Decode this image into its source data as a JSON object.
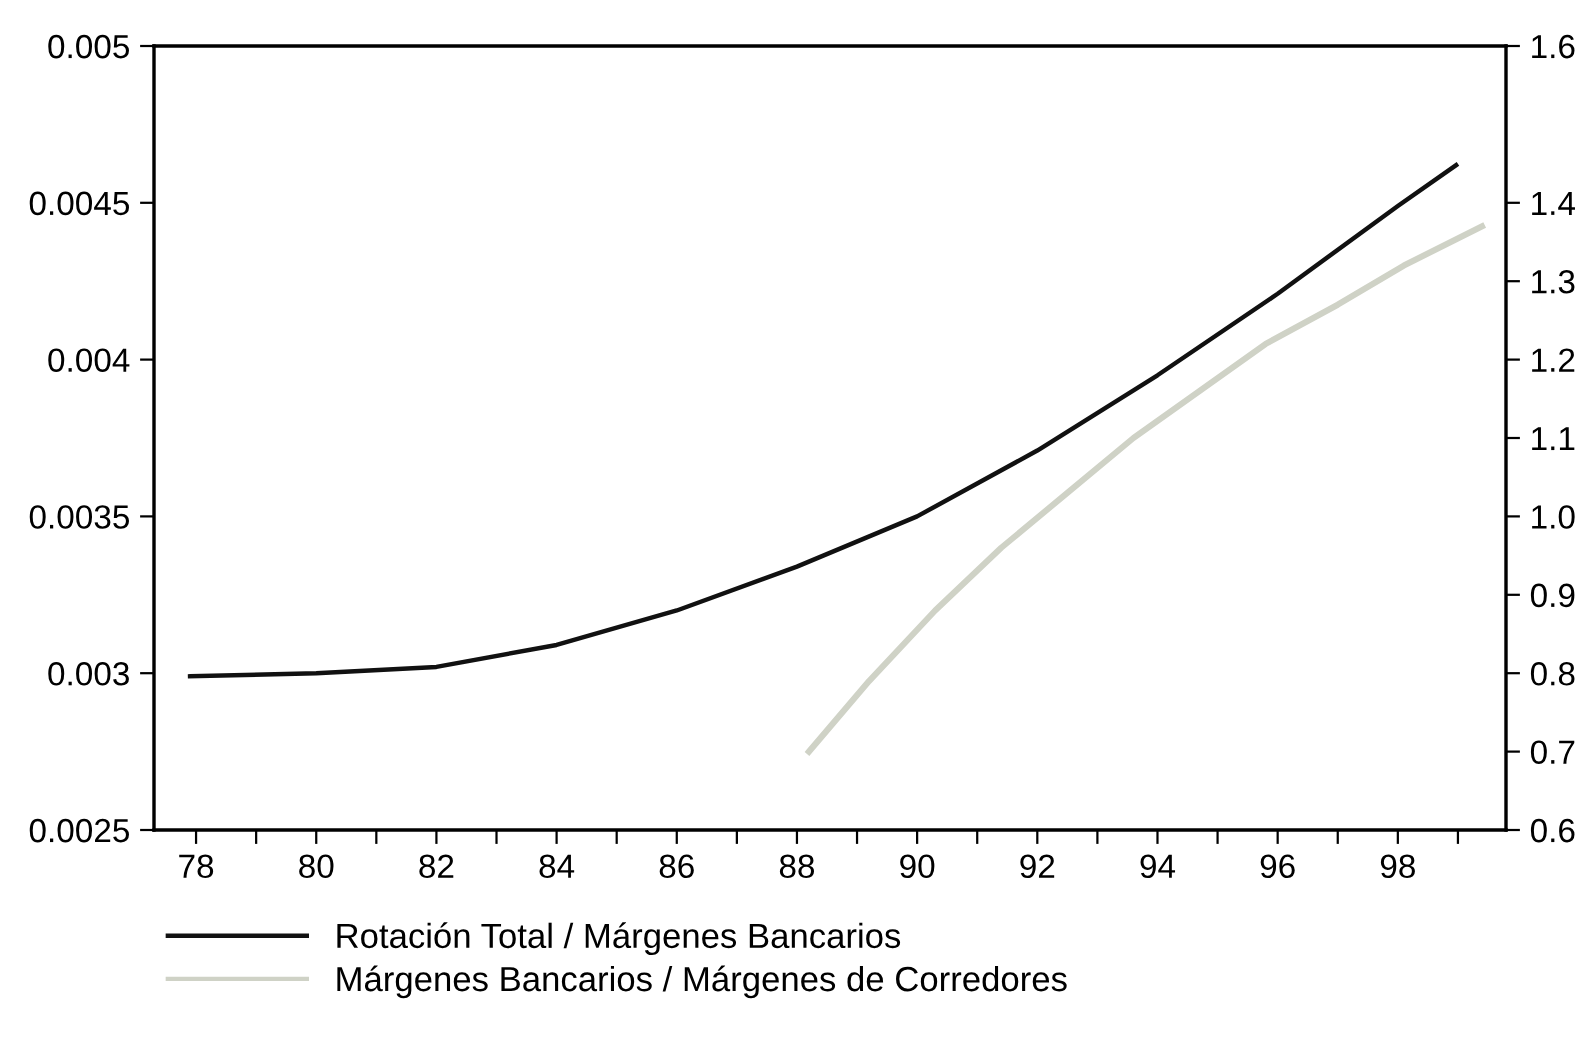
{
  "chart_data": {
    "type": "line",
    "xlim": [
      77.3,
      99.8
    ],
    "xticks": [
      78,
      {
        "value": 79,
        "label": null
      },
      80,
      {
        "value": 81,
        "label": null
      },
      82,
      {
        "value": 83,
        "label": null
      },
      84,
      {
        "value": 85,
        "label": null
      },
      86,
      {
        "value": 87,
        "label": null
      },
      88,
      {
        "value": 89,
        "label": null
      },
      90,
      {
        "value": 91,
        "label": null
      },
      92,
      {
        "value": 93,
        "label": null
      },
      94,
      {
        "value": 95,
        "label": null
      },
      96,
      {
        "value": 97,
        "label": null
      },
      98,
      {
        "value": 99,
        "label": null
      }
    ],
    "ylim": [
      0.0025,
      0.005
    ],
    "yticks": [
      0.0025,
      0.003,
      0.0035,
      0.004,
      0.0045,
      0.005
    ],
    "y2lim": [
      0.6,
      1.6
    ],
    "y2ticks": [
      0.6,
      0.7,
      0.8,
      0.9,
      {
        "value": 1.0,
        "label": "1.0"
      },
      1.1,
      1.2,
      1.3,
      1.4,
      1.6
    ],
    "legend": "bottom",
    "grid": false,
    "series": [
      {
        "name": "Rotación Total / Márgenes Bancarios",
        "color": "#111111",
        "x": [
          77.9,
          80,
          82,
          84,
          86,
          88,
          90,
          92,
          94,
          96,
          98,
          98.97
        ],
        "values": [
          0.00299,
          0.003,
          0.00302,
          0.00309,
          0.0032,
          0.00334,
          0.0035,
          0.00371,
          0.00395,
          0.00421,
          0.00449,
          0.00462
        ]
      },
      {
        "name": "Márgenes Bancarios / Márgenes de Corredores",
        "color": "#cfd2c6",
        "axis": "y2",
        "x": [
          88.2,
          89.2,
          90.3,
          91.4,
          92.5,
          93.6,
          94.7,
          95.8,
          97.0,
          98.1,
          99.4
        ],
        "values": [
          0.7,
          0.79,
          0.88,
          0.96,
          1.03,
          1.1,
          1.16,
          1.22,
          1.27,
          1.32,
          1.37
        ]
      }
    ]
  }
}
